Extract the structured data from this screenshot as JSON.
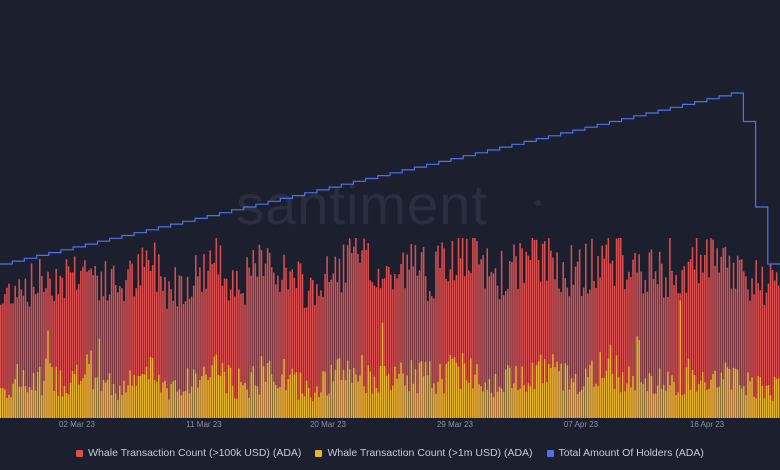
{
  "watermark": "santiment",
  "colors": {
    "background": "#1c1f2e",
    "whale_100k": "#d94f50",
    "whale_1m": "#e8b530",
    "holders": "#5170e8",
    "tick_text": "#8a91a8"
  },
  "chart_data": {
    "type": "bar",
    "x_tick_labels": [
      "02 Mar 23",
      "11 Mar 23",
      "20 Mar 23",
      "29 Mar 23",
      "07 Apr 23",
      "16 Apr 23"
    ],
    "legend_position": "bottom-center",
    "grid": false,
    "series": [
      {
        "name": "Whale Transaction Count (>100k USD) (ADA)",
        "type": "bar",
        "color": "#d94f50",
        "daily_profile": [
          120,
          145,
          140,
          150,
          148,
          160,
          155,
          140,
          142,
          150,
          165,
          138,
          146,
          152,
          168,
          150,
          144,
          158,
          162,
          147,
          135,
          140,
          155,
          170,
          160,
          148,
          152,
          163,
          150,
          158,
          175,
          165,
          155,
          150,
          162,
          170,
          168,
          158,
          152,
          165,
          172,
          160,
          155,
          150,
          145,
          158,
          165,
          160,
          155,
          150,
          140,
          135
        ]
      },
      {
        "name": "Whale Transaction Count (>1m USD) (ADA)",
        "type": "bar",
        "color": "#e8b530",
        "daily_profile": [
          30,
          40,
          35,
          45,
          38,
          42,
          50,
          35,
          32,
          40,
          48,
          30,
          36,
          42,
          55,
          38,
          35,
          45,
          50,
          40,
          30,
          34,
          44,
          52,
          46,
          38,
          40,
          48,
          42,
          44,
          56,
          48,
          40,
          38,
          46,
          54,
          50,
          42,
          40,
          48,
          55,
          46,
          42,
          38,
          36,
          45,
          50,
          46,
          42,
          38,
          34,
          30
        ]
      },
      {
        "name": "Total Amount Of Holders (ADA)",
        "type": "line",
        "color": "#5170e8",
        "shape": "step",
        "trend": [
          100,
          101,
          102,
          103,
          104,
          105,
          106,
          107,
          108,
          109,
          110,
          111,
          112,
          113,
          114,
          115,
          116,
          117,
          118,
          119,
          120,
          121,
          122,
          123,
          124,
          125,
          126,
          127,
          128,
          129,
          130,
          131,
          132,
          133,
          134,
          135,
          136,
          137,
          138,
          139,
          140,
          141,
          142,
          143,
          144,
          145,
          146,
          147,
          148,
          149,
          150,
          151,
          152,
          153,
          154,
          155,
          156,
          157,
          158,
          159,
          160,
          150,
          120,
          100
        ]
      }
    ]
  }
}
